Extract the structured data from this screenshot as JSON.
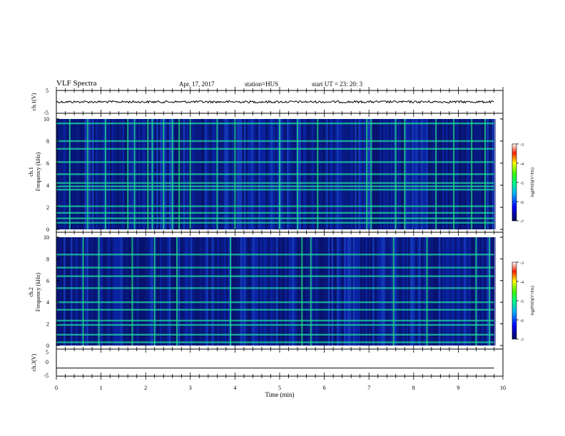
{
  "header": {
    "title": "VLF Spectra",
    "date": "Apr. 17, 2017",
    "station": "station=HUS",
    "start": "start  UT  =    23: 20: 3"
  },
  "colors": {
    "background": "#ffffff",
    "spectrogram_floor": "#0a1a8c",
    "trace": "#000000"
  },
  "chart_data": [
    {
      "type": "line",
      "name": "ch1-waveform",
      "ylabel": "ch.1(V)",
      "ylim": [
        -5,
        5
      ],
      "yticks": [
        "5",
        "-5"
      ],
      "xlim": [
        0,
        10
      ],
      "x": [
        0,
        2,
        4,
        6,
        8,
        9.8
      ],
      "y": [
        0,
        0,
        0,
        0,
        0,
        0
      ],
      "description_note": ""
    },
    {
      "type": "heatmap",
      "name": "ch1-spectrogram",
      "ylabel_top": "ch.1",
      "ylabel": "Frequency (kHz)",
      "ylim": [
        0,
        10
      ],
      "xlim": [
        0,
        10
      ],
      "yticks": [
        "0",
        "2",
        "4",
        "6",
        "8",
        "10"
      ],
      "bright_bands_khz": [
        0.6,
        1.0,
        1.5,
        2.1,
        3.6,
        3.9,
        4.2,
        5.0,
        6.1,
        7.3,
        8.0,
        9.6
      ],
      "bright_times_min": [
        0.3,
        0.7,
        1.1,
        1.6,
        1.75,
        2.05,
        2.15,
        2.4,
        2.6,
        2.75,
        3.0,
        3.6,
        4.0,
        5.0,
        5.4,
        5.85,
        6.95,
        7.05,
        7.6,
        7.8,
        8.5,
        8.9,
        9.3,
        9.6
      ],
      "colorbar": {
        "label": "log(PSD)(V²/Hz)",
        "range": [
          -7,
          -3
        ],
        "ticks": [
          "-3",
          "-4",
          "-5",
          "-6",
          "-7"
        ]
      }
    },
    {
      "type": "heatmap",
      "name": "ch2-spectrogram",
      "ylabel_top": "ch.2",
      "ylabel": "Frequency (kHz)",
      "ylim": [
        0,
        10
      ],
      "xlim": [
        0,
        10
      ],
      "yticks": [
        "0",
        "2",
        "4",
        "6",
        "8",
        "10"
      ],
      "bright_bands_khz": [
        0.3,
        1.0,
        1.9,
        2.3,
        3.3,
        4.0,
        5.3,
        6.4,
        7.2,
        8.4
      ],
      "bright_times_min": [
        0.6,
        0.95,
        1.7,
        2.2,
        2.7,
        3.9,
        5.5,
        5.7,
        7.55,
        8.3,
        9.4,
        9.7
      ],
      "colorbar": {
        "label": "log(PSD)(V²/Hz)",
        "range": [
          -7,
          -3
        ],
        "ticks": [
          "-3",
          "-4",
          "-5",
          "-6",
          "-7"
        ]
      }
    },
    {
      "type": "line",
      "name": "ch3-waveform",
      "ylabel": "ch.3(V)",
      "ylim": [
        -5,
        5
      ],
      "yticks": [
        "5",
        "0",
        "-5"
      ],
      "xlim": [
        0,
        10
      ],
      "x": [
        0,
        9.8
      ],
      "y": [
        -2,
        -2
      ],
      "xlabel": "Time (min)",
      "xticks": [
        "0",
        "1",
        "2",
        "3",
        "4",
        "5",
        "6",
        "7",
        "8",
        "9",
        "10"
      ]
    }
  ]
}
